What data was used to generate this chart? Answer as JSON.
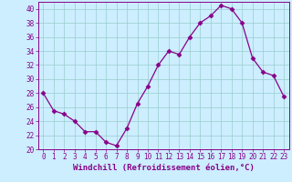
{
  "x": [
    0,
    1,
    2,
    3,
    4,
    5,
    6,
    7,
    8,
    9,
    10,
    11,
    12,
    13,
    14,
    15,
    16,
    17,
    18,
    19,
    20,
    21,
    22,
    23
  ],
  "y": [
    28,
    25.5,
    25,
    24,
    22.5,
    22.5,
    21,
    20.5,
    23,
    26.5,
    29,
    32,
    34,
    33.5,
    36,
    38,
    39,
    40.5,
    40,
    38,
    33,
    31,
    30.5,
    27.5
  ],
  "line_color": "#880088",
  "marker": "D",
  "marker_size": 2.5,
  "bg_color": "#cceeff",
  "grid_color": "#99cccc",
  "xlabel": "Windchill (Refroidissement éolien,°C)",
  "ylim": [
    20,
    41
  ],
  "yticks": [
    20,
    22,
    24,
    26,
    28,
    30,
    32,
    34,
    36,
    38,
    40
  ],
  "xticks": [
    0,
    1,
    2,
    3,
    4,
    5,
    6,
    7,
    8,
    9,
    10,
    11,
    12,
    13,
    14,
    15,
    16,
    17,
    18,
    19,
    20,
    21,
    22,
    23
  ],
  "tick_label_color": "#880088",
  "tick_label_size": 5.5,
  "xlabel_size": 6.5,
  "spine_color": "#880088"
}
